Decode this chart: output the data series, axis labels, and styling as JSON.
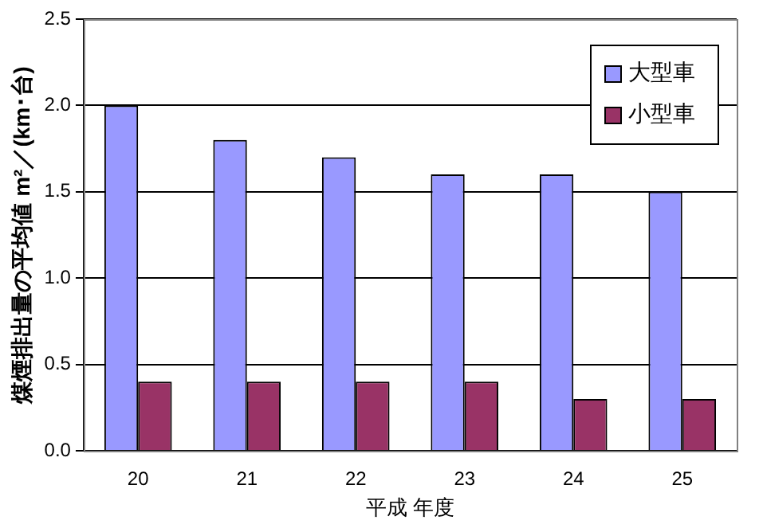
{
  "chart_data": {
    "type": "bar",
    "categories": [
      "20",
      "21",
      "22",
      "23",
      "24",
      "25"
    ],
    "series": [
      {
        "name": "大型車",
        "color": "#9999ff",
        "values": [
          2.0,
          1.8,
          1.7,
          1.6,
          1.6,
          1.5
        ]
      },
      {
        "name": "小型車",
        "color": "#993366",
        "values": [
          0.4,
          0.4,
          0.4,
          0.4,
          0.3,
          0.3
        ]
      }
    ],
    "xlabel": "平成 年度",
    "ylabel": "煤煙排出量の平均値 m²／(km･台)",
    "ylim": [
      0,
      2.5
    ],
    "yticks": [
      {
        "value": 0,
        "label": "0.0"
      },
      {
        "value": 0.5,
        "label": "0.5"
      },
      {
        "value": 1,
        "label": "1.0"
      },
      {
        "value": 1.5,
        "label": "1.5"
      },
      {
        "value": 2,
        "label": "2.0"
      },
      {
        "value": 2.5,
        "label": "2.5"
      }
    ],
    "grid": "y",
    "legend": "top right"
  }
}
